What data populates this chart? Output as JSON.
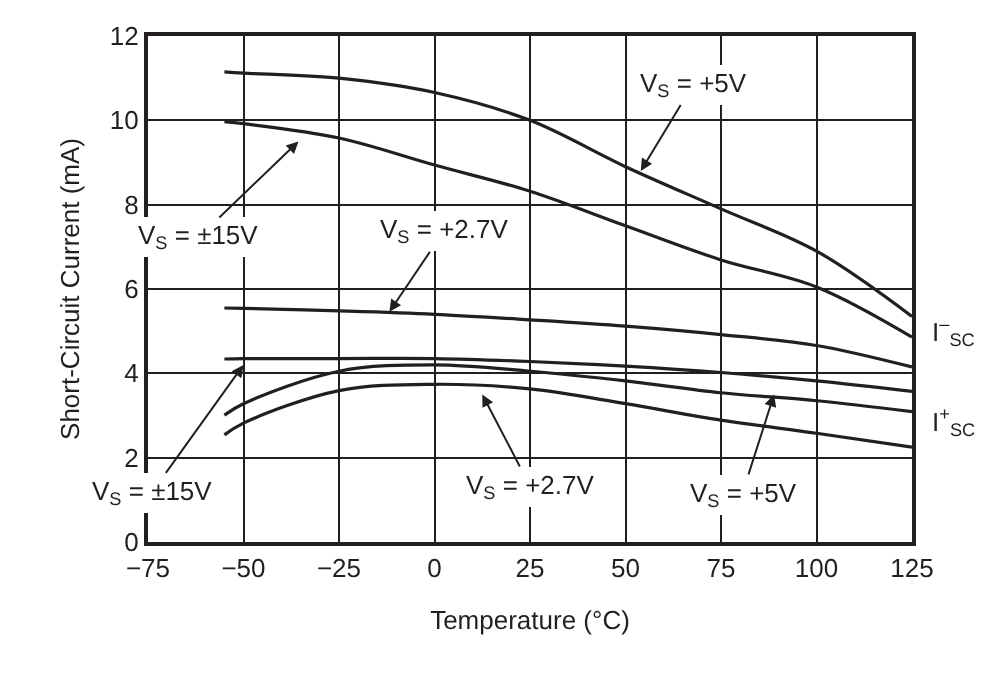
{
  "chart_data": {
    "type": "line",
    "xlabel": "Temperature (°C)",
    "ylabel": "Short-Circuit Current (mA)",
    "xlim": [
      -75,
      125
    ],
    "xticks": [
      {
        "value": -75,
        "label": "−75"
      },
      {
        "value": -50,
        "label": "−50"
      },
      {
        "value": -25,
        "label": "−25"
      },
      0,
      25,
      50,
      75,
      100,
      125
    ],
    "ylim": [
      0,
      12
    ],
    "yticks": [
      0,
      2,
      4,
      6,
      8,
      10,
      12
    ],
    "grid": true,
    "marker": "none",
    "line_style": "solid",
    "x": [
      -55,
      -50,
      -25,
      0,
      25,
      50,
      75,
      100,
      125
    ],
    "series": [
      {
        "color": "#231f20",
        "values": [
          11.15,
          11.12,
          11.0,
          10.66,
          10.0,
          8.9,
          7.9,
          6.9,
          5.35
        ]
      },
      {
        "color": "#231f20",
        "values": [
          9.97,
          9.92,
          9.58,
          8.94,
          8.32,
          7.5,
          6.69,
          6.05,
          4.86
        ]
      },
      {
        "color": "#231f20",
        "values": [
          5.55,
          5.54,
          5.48,
          5.4,
          5.27,
          5.12,
          4.92,
          4.66,
          4.15
        ]
      },
      {
        "color": "#231f20",
        "values": [
          4.34,
          4.35,
          4.35,
          4.35,
          4.28,
          4.17,
          4.02,
          3.82,
          3.57
        ]
      },
      {
        "color": "#231f20",
        "values": [
          3.01,
          3.28,
          4.05,
          4.2,
          4.05,
          3.82,
          3.54,
          3.35,
          3.09
        ]
      },
      {
        "color": "#231f20",
        "values": [
          2.54,
          2.82,
          3.59,
          3.74,
          3.63,
          3.28,
          2.89,
          2.58,
          2.25
        ]
      }
    ],
    "annotations": [
      {
        "text": "V$_{S}$ = +5V",
        "x": 54,
        "y": 8.8
      },
      {
        "text": "V$_{S}$ = ±15V",
        "x": -35.6,
        "y": 9.5
      },
      {
        "text": "V$_{S}$ = +2.7V",
        "x": -11.8,
        "y": 5.46
      },
      {
        "text": "V$_{S}$ = ±15V",
        "x": -50,
        "y": 4.2
      },
      {
        "text": "V$_{S}$ = +2.7V",
        "x": 12.5,
        "y": 3.5
      },
      {
        "text": "V$_{S}$ = +5V",
        "x": 88.9,
        "y": 3.5
      },
      "I$^{–}$$_{SC}$",
      "I$^{+}$$_{SC}$"
    ]
  }
}
